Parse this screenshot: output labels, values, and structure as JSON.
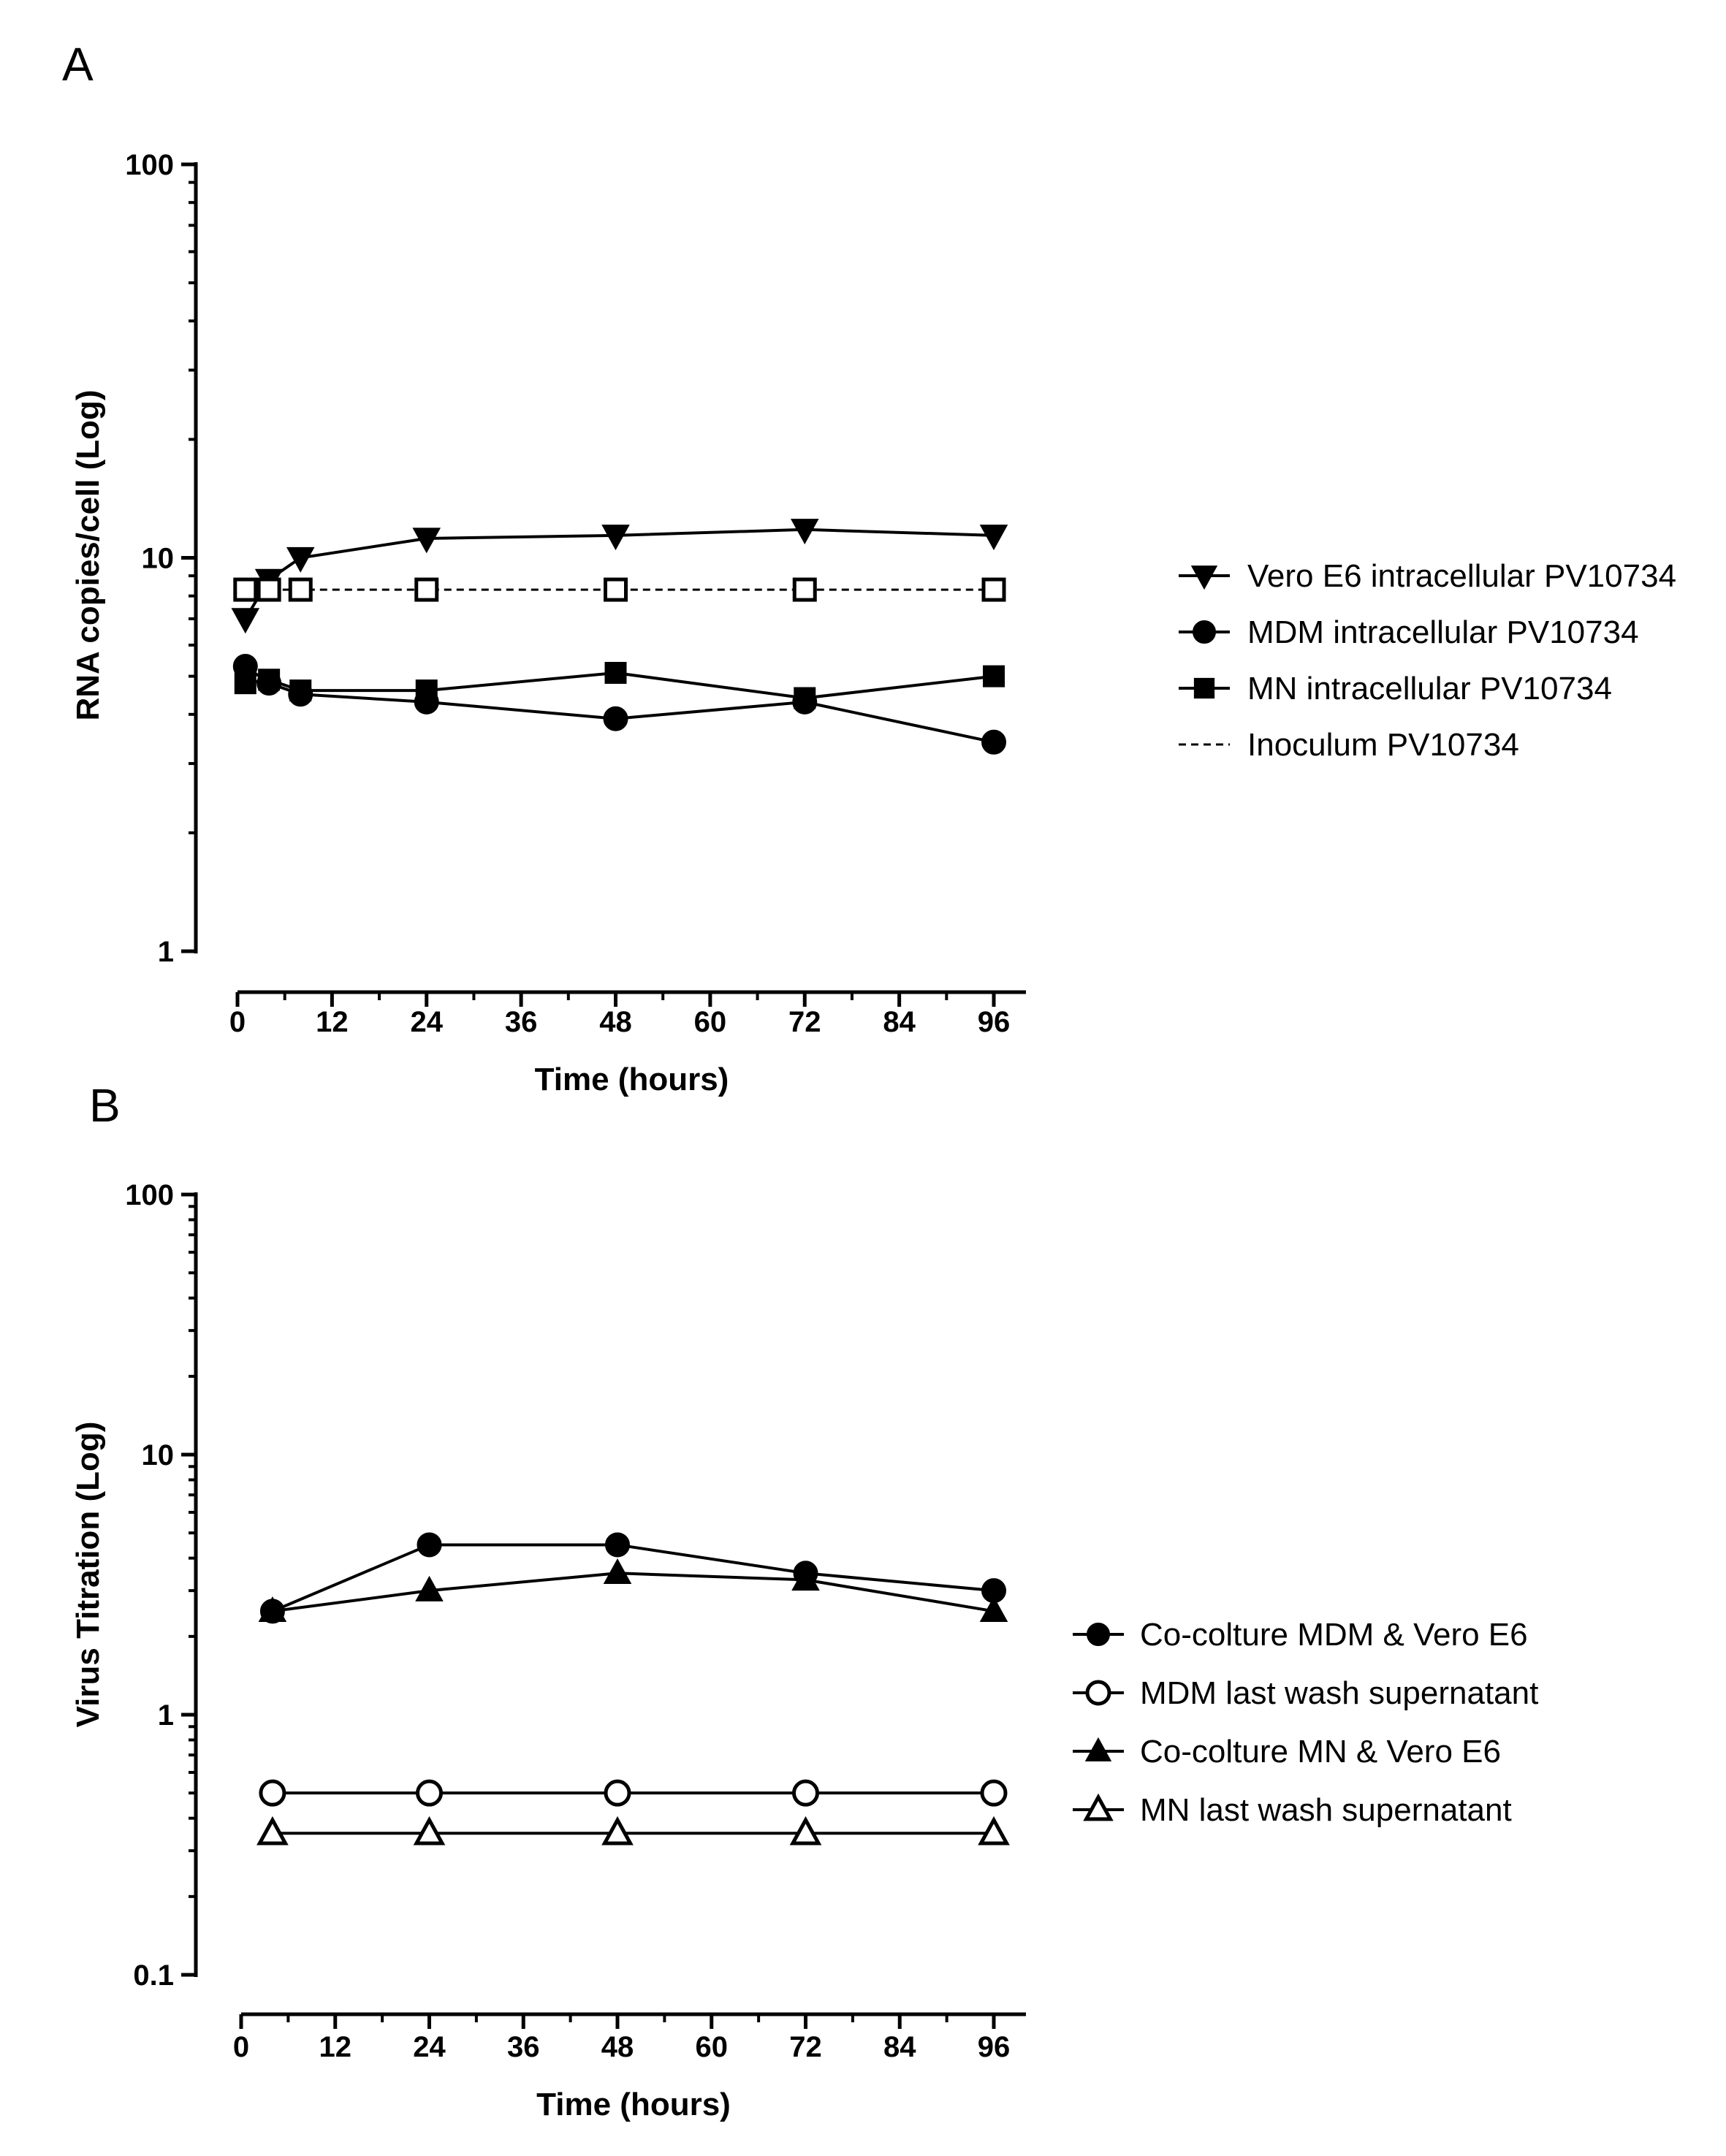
{
  "chart_data": [
    {
      "panel": "A",
      "type": "line",
      "xlabel": "Time (hours)",
      "ylabel": "RNA copies/cell (Log)",
      "yscale": "log",
      "xlim": [
        0,
        100
      ],
      "ylim": [
        1,
        100
      ],
      "xticks": [
        "0",
        "12",
        "24",
        "36",
        "48",
        "60",
        "72",
        "84",
        "96"
      ],
      "yticks": [
        "1",
        "10",
        "100"
      ],
      "series": [
        {
          "name": "Vero E6 intracellular PV10734",
          "marker": "triangle-down",
          "dashed": false,
          "x": [
            1,
            4,
            8,
            24,
            48,
            72,
            96
          ],
          "y": [
            7.0,
            8.8,
            10.0,
            11.2,
            11.4,
            11.8,
            11.4
          ]
        },
        {
          "name": "MDM intracellular PV10734",
          "marker": "circle",
          "dashed": false,
          "x": [
            1,
            4,
            8,
            24,
            48,
            72,
            96
          ],
          "y": [
            5.3,
            4.8,
            4.5,
            4.3,
            3.9,
            4.3,
            3.4
          ]
        },
        {
          "name": "MN intracellular PV10734",
          "marker": "square",
          "dashed": false,
          "x": [
            1,
            4,
            8,
            24,
            48,
            72,
            96
          ],
          "y": [
            4.8,
            4.9,
            4.6,
            4.6,
            5.1,
            4.4,
            5.0
          ]
        },
        {
          "name": "Inoculum PV10734",
          "marker": "square-open",
          "dashed": true,
          "x": [
            1,
            4,
            8,
            24,
            48,
            72,
            96
          ],
          "y": [
            8.3,
            8.3,
            8.3,
            8.3,
            8.3,
            8.3,
            8.3
          ]
        }
      ]
    },
    {
      "panel": "B",
      "type": "line",
      "xlabel": "Time (hours)",
      "ylabel": "Virus Titration (Log)",
      "yscale": "log",
      "xlim": [
        0,
        100
      ],
      "ylim": [
        0.1,
        100
      ],
      "xticks": [
        "0",
        "12",
        "24",
        "36",
        "48",
        "60",
        "72",
        "84",
        "96"
      ],
      "yticks": [
        "0.1",
        "1",
        "10",
        "100"
      ],
      "series": [
        {
          "name": "Co-colture MDM & Vero E6",
          "marker": "circle",
          "dashed": false,
          "x": [
            4,
            24,
            48,
            72,
            96
          ],
          "y": [
            2.5,
            4.5,
            4.5,
            3.5,
            3.0
          ]
        },
        {
          "name": "MDM last wash supernatant",
          "marker": "circle-open",
          "dashed": false,
          "x": [
            4,
            24,
            48,
            72,
            96
          ],
          "y": [
            0.5,
            0.5,
            0.5,
            0.5,
            0.5
          ]
        },
        {
          "name": "Co-colture MN & Vero E6",
          "marker": "triangle",
          "dashed": false,
          "x": [
            4,
            24,
            48,
            72,
            96
          ],
          "y": [
            2.5,
            3.0,
            3.5,
            3.3,
            2.5
          ]
        },
        {
          "name": "MN last wash supernatant",
          "marker": "triangle-open",
          "dashed": false,
          "x": [
            4,
            24,
            48,
            72,
            96
          ],
          "y": [
            0.35,
            0.35,
            0.35,
            0.35,
            0.35
          ]
        }
      ]
    }
  ]
}
